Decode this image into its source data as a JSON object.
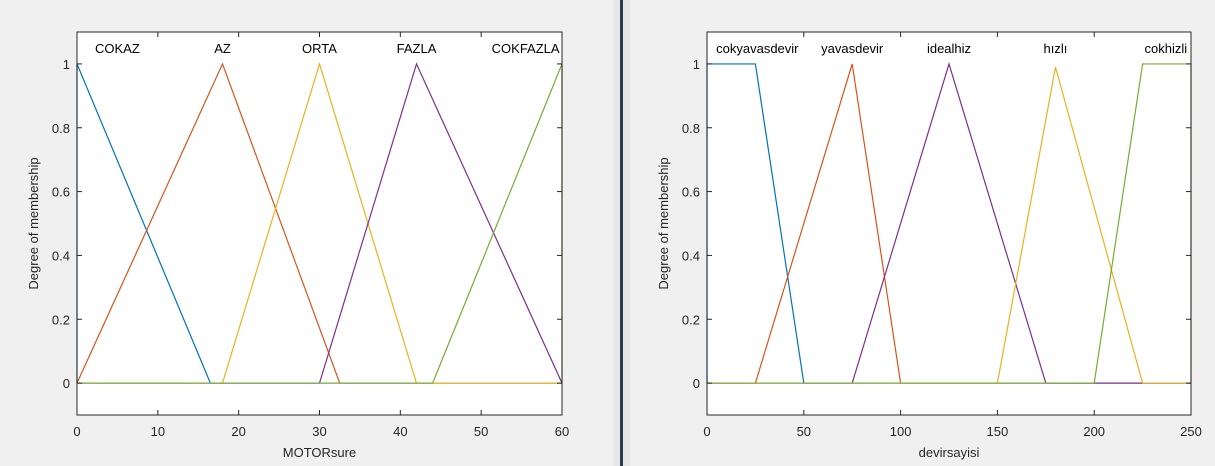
{
  "chart_data": [
    {
      "type": "line",
      "xlabel": "MOTORsure",
      "ylabel": "Degree of membership",
      "xlim": [
        0,
        60
      ],
      "ylim": [
        -0.1,
        1.1
      ],
      "xticks": [
        0,
        10,
        20,
        30,
        40,
        50,
        60
      ],
      "yticks": [
        0,
        0.2,
        0.4,
        0.6,
        0.8,
        1
      ],
      "grid": false,
      "series": [
        {
          "name": "COKAZ",
          "color": "#0072bd",
          "x": [
            0,
            0,
            16.5,
            60
          ],
          "y": [
            0,
            1,
            0,
            0
          ],
          "label_x": 5
        },
        {
          "name": "AZ",
          "color": "#d95319",
          "x": [
            0,
            18,
            32.5,
            60
          ],
          "y": [
            0,
            1,
            0,
            0
          ],
          "label_x": 18
        },
        {
          "name": "ORTA",
          "color": "#edb120",
          "x": [
            0,
            18,
            30,
            42,
            60
          ],
          "y": [
            0,
            0,
            1,
            0,
            0
          ],
          "label_x": 30
        },
        {
          "name": "FAZLA",
          "color": "#7e2f8e",
          "x": [
            0,
            30,
            42,
            60
          ],
          "y": [
            0,
            0,
            1,
            0
          ],
          "label_x": 42
        },
        {
          "name": "COKFAZLA",
          "color": "#77ac30",
          "x": [
            0,
            44,
            60,
            60
          ],
          "y": [
            0,
            0,
            1,
            0
          ],
          "label_x": 55.5
        }
      ]
    },
    {
      "type": "line",
      "xlabel": "devirsayisi",
      "ylabel": "Degree of membership",
      "xlim": [
        0,
        250
      ],
      "ylim": [
        -0.1,
        1.1
      ],
      "xticks": [
        0,
        50,
        100,
        150,
        200,
        250
      ],
      "yticks": [
        0,
        0.2,
        0.4,
        0.6,
        0.8,
        1
      ],
      "grid": false,
      "series": [
        {
          "name": "cokyavasdevir",
          "color": "#0072bd",
          "x": [
            0,
            0,
            25,
            50,
            250
          ],
          "y": [
            0,
            1,
            1,
            0,
            0
          ],
          "label_x": 26
        },
        {
          "name": "yavasdevir",
          "color": "#d95319",
          "x": [
            0,
            25,
            75,
            100,
            250
          ],
          "y": [
            0,
            0,
            1,
            0,
            0
          ],
          "label_x": 75
        },
        {
          "name": "idealhiz",
          "color": "#7e2f8e",
          "x": [
            0,
            75,
            125,
            175,
            250
          ],
          "y": [
            0,
            0,
            1,
            0,
            0
          ],
          "label_x": 125
        },
        {
          "name": "hızlı",
          "color": "#edb120",
          "x": [
            0,
            150,
            180,
            225,
            250
          ],
          "y": [
            0,
            0,
            0.99,
            0,
            0
          ],
          "label_x": 180
        },
        {
          "name": "cokhizli",
          "color": "#77ac30",
          "x": [
            0,
            200,
            225,
            250,
            250
          ],
          "y": [
            0,
            0,
            1,
            1,
            0
          ],
          "label_x": 237
        }
      ]
    }
  ]
}
